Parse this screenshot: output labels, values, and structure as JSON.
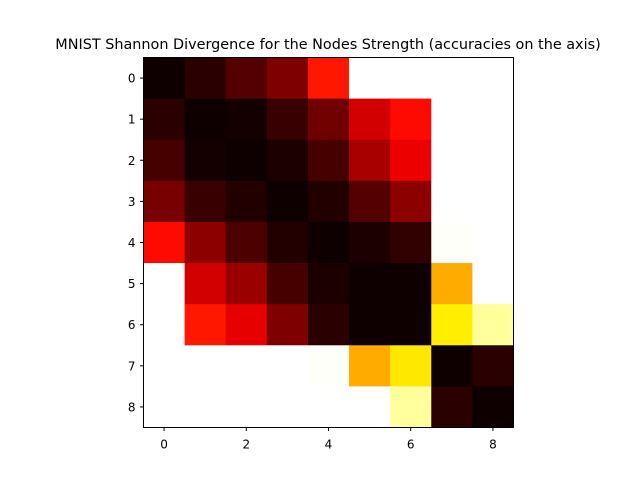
{
  "chart_data": {
    "type": "heatmap",
    "title": "MNIST Shannon Divergence for the Nodes Strength (accuracies on the axis)",
    "xlabel": "",
    "ylabel": "",
    "x_ticks": [
      0,
      2,
      4,
      6,
      8
    ],
    "y_ticks": [
      0,
      1,
      2,
      3,
      4,
      5,
      6,
      7,
      8
    ],
    "xlim": [
      -0.5,
      8.5
    ],
    "ylim": [
      8.5,
      -0.5
    ],
    "colormap": "hot",
    "value_range": [
      0,
      1
    ],
    "value_scale_note": "colormap position 0-1 estimated from cell color",
    "grid": false,
    "matrix": [
      [
        0.02,
        0.06,
        0.12,
        0.18,
        0.4,
        1.0,
        1.0,
        1.0,
        1.0
      ],
      [
        0.06,
        0.02,
        0.03,
        0.08,
        0.16,
        0.3,
        0.38,
        1.0,
        1.0
      ],
      [
        0.1,
        0.03,
        0.02,
        0.04,
        0.1,
        0.24,
        0.34,
        1.0,
        1.0
      ],
      [
        0.17,
        0.08,
        0.05,
        0.02,
        0.05,
        0.12,
        0.2,
        1.0,
        1.0
      ],
      [
        0.38,
        0.2,
        0.11,
        0.05,
        0.02,
        0.04,
        0.07,
        0.995,
        1.0
      ],
      [
        1.0,
        0.3,
        0.22,
        0.1,
        0.04,
        0.02,
        0.02,
        0.62,
        1.0
      ],
      [
        1.0,
        0.4,
        0.33,
        0.18,
        0.06,
        0.02,
        0.02,
        0.72,
        0.9
      ],
      [
        1.0,
        1.0,
        1.0,
        1.0,
        0.995,
        0.62,
        0.71,
        0.02,
        0.06
      ],
      [
        1.0,
        1.0,
        1.0,
        1.0,
        1.0,
        1.0,
        0.9,
        0.06,
        0.02
      ]
    ]
  }
}
